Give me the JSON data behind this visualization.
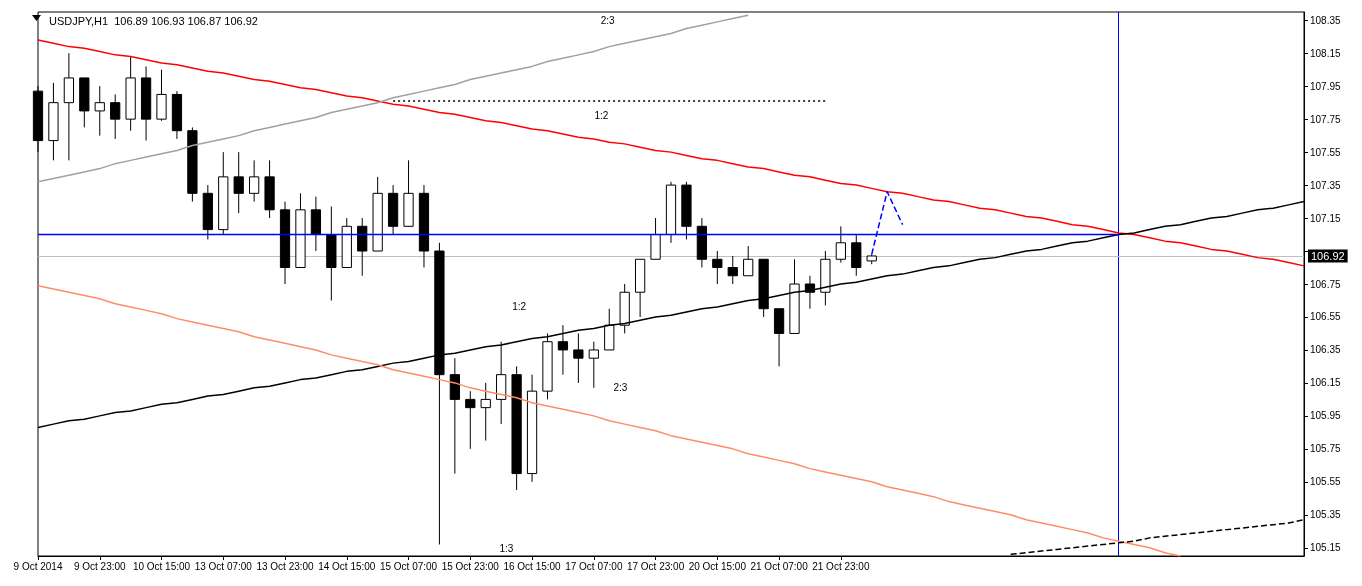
{
  "chart_data": {
    "type": "candlestick",
    "title": "USDJPY,H1  106.89 106.93 106.87 106.92",
    "categories": [
      "9 Oct 2014",
      null,
      null,
      null,
      "9 Oct 23:00",
      null,
      null,
      null,
      "10 Oct 15:00",
      null,
      null,
      null,
      "13 Oct 07:00",
      null,
      null,
      null,
      "13 Oct 23:00",
      null,
      null,
      null,
      "14 Oct 15:00",
      null,
      null,
      null,
      "15 Oct 07:00",
      null,
      null,
      null,
      "15 Oct 23:00",
      null,
      null,
      null,
      "16 Oct 15:00",
      null,
      null,
      null,
      "17 Oct 07:00",
      null,
      null,
      null,
      "17 Oct 23:00",
      null,
      null,
      null,
      "20 Oct 15:00",
      null,
      null,
      null,
      "21 Oct 07:00",
      null,
      null,
      null,
      "21 Oct 23:00",
      null,
      null,
      null,
      null,
      null,
      null,
      null,
      null,
      null,
      null,
      null,
      null,
      null,
      null,
      null,
      null,
      null,
      null,
      null,
      null,
      null,
      null,
      null,
      null,
      null,
      null,
      null,
      null,
      null,
      null
    ],
    "ohlc": [
      [
        107.92,
        107.95,
        107.55,
        107.62
      ],
      [
        107.62,
        107.97,
        107.5,
        107.85
      ],
      [
        107.85,
        108.15,
        107.5,
        108.0
      ],
      [
        108.0,
        108.0,
        107.7,
        107.8
      ],
      [
        107.8,
        107.95,
        107.65,
        107.85
      ],
      [
        107.85,
        107.9,
        107.63,
        107.75
      ],
      [
        107.75,
        108.13,
        107.68,
        108.0
      ],
      [
        108.0,
        108.07,
        107.62,
        107.75
      ],
      [
        107.75,
        108.05,
        107.74,
        107.9
      ],
      [
        107.9,
        107.92,
        107.63,
        107.68
      ],
      [
        107.68,
        107.7,
        107.25,
        107.3
      ],
      [
        107.3,
        107.35,
        107.02,
        107.08
      ],
      [
        107.08,
        107.55,
        107.05,
        107.4
      ],
      [
        107.4,
        107.55,
        107.18,
        107.3
      ],
      [
        107.3,
        107.5,
        107.25,
        107.4
      ],
      [
        107.4,
        107.5,
        107.15,
        107.2
      ],
      [
        107.2,
        107.25,
        106.75,
        106.85
      ],
      [
        106.85,
        107.3,
        106.85,
        107.2
      ],
      [
        107.2,
        107.28,
        106.95,
        107.05
      ],
      [
        107.05,
        107.22,
        106.65,
        106.85
      ],
      [
        106.85,
        107.15,
        106.85,
        107.1
      ],
      [
        107.1,
        107.15,
        106.8,
        106.95
      ],
      [
        106.95,
        107.4,
        106.95,
        107.3
      ],
      [
        107.3,
        107.35,
        107.05,
        107.1
      ],
      [
        107.1,
        107.5,
        107.1,
        107.3
      ],
      [
        107.3,
        107.35,
        106.85,
        106.95
      ],
      [
        106.95,
        107.0,
        105.17,
        106.2
      ],
      [
        106.2,
        106.3,
        105.6,
        106.05
      ],
      [
        106.05,
        106.1,
        105.75,
        106.0
      ],
      [
        106.0,
        106.15,
        105.8,
        106.05
      ],
      [
        106.05,
        106.4,
        105.9,
        106.2
      ],
      [
        106.2,
        106.25,
        105.5,
        105.6
      ],
      [
        105.6,
        106.2,
        105.55,
        106.1
      ],
      [
        106.1,
        106.45,
        106.05,
        106.4
      ],
      [
        106.4,
        106.5,
        106.2,
        106.35
      ],
      [
        106.35,
        106.45,
        106.15,
        106.3
      ],
      [
        106.3,
        106.4,
        106.12,
        106.35
      ],
      [
        106.35,
        106.6,
        106.35,
        106.5
      ],
      [
        106.5,
        106.75,
        106.45,
        106.7
      ],
      [
        106.7,
        106.9,
        106.55,
        106.9
      ],
      [
        106.9,
        107.15,
        106.9,
        107.05
      ],
      [
        107.05,
        107.37,
        107.0,
        107.35
      ],
      [
        107.35,
        107.37,
        107.02,
        107.1
      ],
      [
        107.1,
        107.15,
        106.85,
        106.9
      ],
      [
        106.9,
        106.95,
        106.75,
        106.85
      ],
      [
        106.85,
        106.92,
        106.75,
        106.8
      ],
      [
        106.8,
        106.98,
        106.8,
        106.9
      ],
      [
        106.9,
        106.9,
        106.55,
        106.6
      ],
      [
        106.6,
        106.6,
        106.25,
        106.45
      ],
      [
        106.45,
        106.9,
        106.45,
        106.75
      ],
      [
        106.75,
        106.8,
        106.6,
        106.7
      ],
      [
        106.7,
        106.95,
        106.62,
        106.9
      ],
      [
        106.9,
        107.1,
        106.88,
        107.0
      ],
      [
        107.0,
        107.05,
        106.8,
        106.85
      ],
      [
        106.89,
        106.93,
        106.87,
        106.92
      ],
      null,
      null,
      null,
      null,
      null,
      null,
      null,
      null,
      null,
      null,
      null,
      null,
      null,
      null,
      null,
      null,
      null,
      null,
      null,
      null,
      null,
      null,
      null,
      null,
      null,
      null,
      null,
      null
    ],
    "series": [
      {
        "type": "line",
        "color": "#ff0000",
        "values": [
          108.23,
          108.21,
          108.19,
          108.18,
          108.16,
          108.14,
          108.13,
          108.11,
          108.09,
          108.08,
          108.06,
          108.04,
          108.03,
          108.01,
          107.99,
          107.98,
          107.96,
          107.94,
          107.93,
          107.91,
          107.89,
          107.88,
          107.86,
          107.84,
          107.83,
          107.81,
          107.79,
          107.78,
          107.76,
          107.74,
          107.73,
          107.71,
          107.69,
          107.68,
          107.66,
          107.64,
          107.63,
          107.61,
          107.6,
          107.58,
          107.56,
          107.55,
          107.53,
          107.51,
          107.5,
          107.48,
          107.46,
          107.45,
          107.43,
          107.41,
          107.4,
          107.38,
          107.36,
          107.35,
          107.33,
          107.31,
          107.3,
          107.28,
          107.26,
          107.25,
          107.23,
          107.21,
          107.2,
          107.18,
          107.16,
          107.15,
          107.13,
          107.11,
          107.1,
          107.08,
          107.06,
          107.05,
          107.03,
          107.01,
          107.0,
          106.98,
          106.96,
          106.95,
          106.93,
          106.91,
          106.9,
          106.88,
          106.86
        ]
      },
      {
        "type": "line",
        "color": "#000000",
        "values": [
          105.88,
          105.9,
          105.92,
          105.93,
          105.95,
          105.97,
          105.98,
          106.0,
          106.02,
          106.03,
          106.05,
          106.07,
          106.08,
          106.1,
          106.12,
          106.13,
          106.15,
          106.17,
          106.18,
          106.2,
          106.22,
          106.23,
          106.25,
          106.27,
          106.28,
          106.3,
          106.32,
          106.33,
          106.35,
          106.37,
          106.38,
          106.4,
          106.42,
          106.43,
          106.45,
          106.47,
          106.48,
          106.5,
          106.51,
          106.53,
          106.55,
          106.56,
          106.58,
          106.6,
          106.61,
          106.63,
          106.65,
          106.66,
          106.68,
          106.7,
          106.71,
          106.73,
          106.75,
          106.76,
          106.78,
          106.8,
          106.81,
          106.83,
          106.85,
          106.86,
          106.88,
          106.9,
          106.91,
          106.93,
          106.95,
          106.96,
          106.98,
          107.0,
          107.01,
          107.03,
          107.05,
          107.06,
          107.08,
          107.1,
          107.11,
          107.13,
          107.15,
          107.16,
          107.18,
          107.2,
          107.21,
          107.23,
          107.25
        ]
      },
      {
        "type": "line",
        "color": "#ff8c69",
        "values": [
          106.74,
          106.72,
          106.7,
          106.68,
          106.66,
          106.63,
          106.61,
          106.59,
          106.57,
          106.54,
          106.52,
          106.5,
          106.48,
          106.46,
          106.43,
          106.41,
          106.39,
          106.37,
          106.35,
          106.32,
          106.3,
          106.28,
          106.26,
          106.23,
          106.21,
          106.19,
          106.17,
          106.15,
          106.12,
          106.1,
          106.08,
          106.06,
          106.03,
          106.01,
          105.99,
          105.97,
          105.95,
          105.92,
          105.9,
          105.88,
          105.86,
          105.83,
          105.81,
          105.79,
          105.77,
          105.75,
          105.72,
          105.7,
          105.68,
          105.66,
          105.63,
          105.61,
          105.59,
          105.57,
          105.55,
          105.52,
          105.5,
          105.48,
          105.46,
          105.43,
          105.41,
          105.39,
          105.37,
          105.35,
          105.32,
          105.3,
          105.28,
          105.26,
          105.24,
          105.21,
          105.19,
          105.17,
          105.15,
          105.12,
          105.1,
          null,
          null,
          null,
          null,
          null,
          null,
          null,
          null
        ]
      },
      {
        "type": "line",
        "color": "#a0a0a0",
        "values": [
          107.37,
          107.39,
          107.41,
          107.43,
          107.45,
          107.48,
          107.5,
          107.52,
          107.54,
          107.56,
          107.59,
          107.61,
          107.63,
          107.65,
          107.68,
          107.7,
          107.72,
          107.74,
          107.76,
          107.79,
          107.81,
          107.83,
          107.85,
          107.88,
          107.9,
          107.92,
          107.94,
          107.96,
          107.99,
          108.01,
          108.03,
          108.05,
          108.07,
          108.1,
          108.12,
          108.14,
          108.16,
          108.19,
          108.21,
          108.23,
          108.25,
          108.27,
          108.3,
          108.32,
          108.34,
          108.36,
          108.38,
          null,
          null,
          null,
          null,
          null,
          null,
          null,
          null,
          null,
          null,
          null,
          null,
          null,
          null,
          null,
          null,
          null,
          null,
          null,
          null,
          null,
          null,
          null,
          null,
          null,
          null,
          null,
          null,
          null,
          null,
          null,
          null,
          null,
          null,
          null,
          null
        ]
      },
      {
        "type": "line",
        "color": "#0000ff",
        "values": [
          107.05,
          107.05,
          107.05,
          107.05,
          107.05,
          107.05,
          107.05,
          107.05,
          107.05,
          107.05,
          107.05,
          107.05,
          107.05,
          107.05,
          107.05,
          107.05,
          107.05,
          107.05,
          107.05,
          107.05,
          107.05,
          107.05,
          107.05,
          107.05,
          107.05,
          107.05,
          107.05,
          107.05,
          107.05,
          107.05,
          107.05,
          107.05,
          107.05,
          107.05,
          107.05,
          107.05,
          107.05,
          107.05,
          107.05,
          107.05,
          107.05,
          107.05,
          107.05,
          107.05,
          107.05,
          107.05,
          107.05,
          107.05,
          107.05,
          107.05,
          107.05,
          107.05,
          107.05,
          107.05,
          107.05,
          107.05,
          107.05,
          107.05,
          107.05,
          107.05,
          107.05,
          107.05,
          107.05,
          107.05,
          107.05,
          107.05,
          107.05,
          107.05,
          107.05,
          107.05,
          107.05,
          null,
          null,
          null,
          null,
          null,
          null,
          null,
          null,
          null,
          null,
          null,
          null
        ]
      },
      {
        "type": "line",
        "color": "#000000",
        "line_style": "dotted",
        "values": [
          null,
          null,
          null,
          null,
          null,
          null,
          null,
          null,
          null,
          null,
          null,
          null,
          null,
          null,
          null,
          null,
          null,
          null,
          null,
          null,
          null,
          null,
          null,
          107.86,
          107.86,
          107.86,
          107.86,
          107.86,
          107.86,
          107.86,
          107.86,
          107.86,
          107.86,
          107.86,
          107.86,
          107.86,
          107.86,
          107.86,
          107.86,
          107.86,
          107.86,
          107.86,
          107.86,
          107.86,
          107.86,
          107.86,
          107.86,
          107.86,
          107.86,
          107.86,
          107.86,
          107.86,
          null,
          null,
          null,
          null,
          null,
          null,
          null,
          null,
          null,
          null,
          null,
          null,
          null,
          null,
          null,
          null,
          null,
          null,
          null,
          null,
          null,
          null,
          null,
          null,
          null,
          null,
          null,
          null,
          null,
          null,
          null
        ]
      },
      {
        "type": "line",
        "color": "#0000ff",
        "line_style": "dashed",
        "values": [
          null,
          null,
          null,
          null,
          null,
          null,
          null,
          null,
          null,
          null,
          null,
          null,
          null,
          null,
          null,
          null,
          null,
          null,
          null,
          null,
          null,
          null,
          null,
          null,
          null,
          null,
          null,
          null,
          null,
          null,
          null,
          null,
          null,
          null,
          null,
          null,
          null,
          null,
          null,
          null,
          null,
          null,
          null,
          null,
          null,
          null,
          null,
          null,
          null,
          null,
          null,
          null,
          null,
          null,
          106.93,
          107.31,
          107.11,
          null,
          null,
          null,
          null,
          null,
          null,
          null,
          null,
          null,
          null,
          null,
          null,
          null,
          null,
          null,
          null,
          null,
          null,
          null,
          null,
          null,
          null,
          null,
          null,
          null,
          null
        ]
      },
      {
        "type": "line",
        "color": "#000000",
        "line_style": "dashed",
        "values": [
          null,
          null,
          null,
          null,
          null,
          null,
          null,
          null,
          null,
          null,
          null,
          null,
          null,
          null,
          null,
          null,
          null,
          null,
          null,
          null,
          null,
          null,
          null,
          null,
          null,
          null,
          null,
          null,
          null,
          null,
          null,
          null,
          null,
          null,
          null,
          null,
          null,
          null,
          null,
          null,
          null,
          null,
          null,
          null,
          null,
          null,
          null,
          null,
          null,
          null,
          null,
          null,
          null,
          null,
          null,
          null,
          null,
          null,
          null,
          null,
          null,
          null,
          null,
          105.11,
          105.12,
          105.13,
          105.14,
          105.15,
          105.16,
          105.17,
          105.18,
          105.19,
          105.21,
          105.22,
          105.23,
          105.24,
          105.25,
          105.26,
          105.27,
          105.28,
          105.29,
          105.3,
          105.32
        ]
      }
    ],
    "ylim": [
      105.1,
      108.4
    ],
    "yticks": [
      105.15,
      105.35,
      105.55,
      105.75,
      105.95,
      106.15,
      106.35,
      106.55,
      106.75,
      {
        "value": 106.95,
        "label": null
      },
      107.15,
      107.35,
      107.55,
      107.75,
      107.95,
      108.15,
      108.35
    ],
    "ref_lines": [
      {
        "axis": "y",
        "value": 106.92,
        "label": "106.92",
        "color": "#c0c0c0"
      }
    ],
    "annotations": [
      "2:3",
      "1:2",
      "1:2",
      "2:3",
      "1:3"
    ],
    "grid": false
  }
}
